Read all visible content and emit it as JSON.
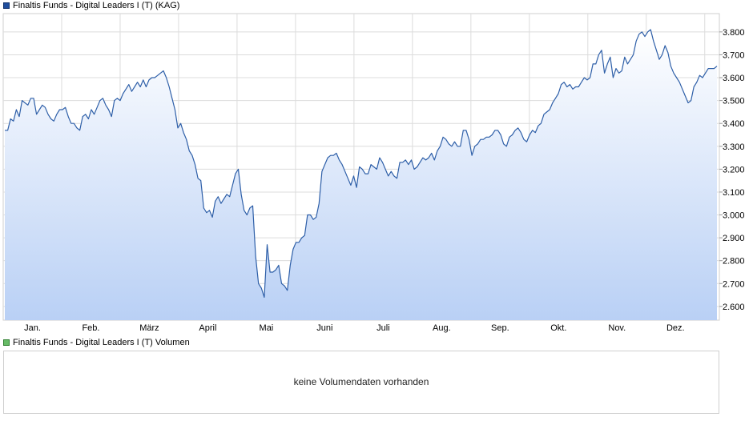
{
  "price_legend": {
    "label": "Finaltis Funds - Digital Leaders I (T) (KAG)",
    "color": "#1f4e9e"
  },
  "volume_legend": {
    "label": "Finaltis Funds - Digital Leaders I (T) Volumen",
    "color": "#66bb66"
  },
  "volume_panel": {
    "message": "keine Volumendaten vorhanden"
  },
  "chart_data": {
    "type": "area",
    "ylim": [
      2540,
      3880
    ],
    "yticks": [
      2600,
      2700,
      2800,
      2900,
      3000,
      3100,
      3200,
      3300,
      3400,
      3500,
      3600,
      3700,
      3800
    ],
    "ytick_labels": [
      "2.600",
      "2.700",
      "2.800",
      "2.900",
      "3.000",
      "3.100",
      "3.200",
      "3.300",
      "3.400",
      "3.500",
      "3.600",
      "3.700",
      "3.800"
    ],
    "x_range": [
      0,
      12.25
    ],
    "xticks": [
      0.5,
      1.5,
      2.5,
      3.5,
      4.5,
      5.5,
      6.5,
      7.5,
      8.5,
      9.5,
      10.5,
      11.5
    ],
    "xtick_labels": [
      "Jan.",
      "Feb.",
      "März",
      "April",
      "Mai",
      "Juni",
      "Juli",
      "Aug.",
      "Sep.",
      "Okt.",
      "Nov.",
      "Dez."
    ],
    "grid": true,
    "series": [
      {
        "color": "#2e5fa8",
        "values": [
          3370,
          3370,
          3420,
          3410,
          3460,
          3430,
          3500,
          3490,
          3480,
          3510,
          3510,
          3440,
          3460,
          3480,
          3470,
          3440,
          3420,
          3410,
          3440,
          3460,
          3460,
          3470,
          3430,
          3400,
          3400,
          3380,
          3370,
          3430,
          3440,
          3420,
          3460,
          3440,
          3470,
          3500,
          3510,
          3480,
          3460,
          3430,
          3500,
          3510,
          3500,
          3530,
          3550,
          3570,
          3540,
          3560,
          3580,
          3560,
          3590,
          3560,
          3590,
          3600,
          3600,
          3610,
          3620,
          3630,
          3600,
          3560,
          3510,
          3460,
          3380,
          3400,
          3360,
          3330,
          3280,
          3260,
          3220,
          3160,
          3150,
          3030,
          3010,
          3020,
          2990,
          3060,
          3080,
          3050,
          3070,
          3090,
          3080,
          3130,
          3180,
          3200,
          3090,
          3020,
          3000,
          3030,
          3040,
          2820,
          2700,
          2680,
          2640,
          2870,
          2750,
          2750,
          2760,
          2780,
          2700,
          2690,
          2670,
          2780,
          2850,
          2880,
          2880,
          2900,
          2910,
          3000,
          3000,
          2980,
          2990,
          3050,
          3190,
          3220,
          3250,
          3260,
          3260,
          3270,
          3240,
          3220,
          3190,
          3160,
          3130,
          3170,
          3120,
          3210,
          3200,
          3180,
          3180,
          3220,
          3210,
          3200,
          3250,
          3230,
          3200,
          3170,
          3190,
          3170,
          3160,
          3230,
          3230,
          3240,
          3220,
          3240,
          3200,
          3210,
          3230,
          3250,
          3240,
          3250,
          3270,
          3240,
          3280,
          3300,
          3340,
          3330,
          3310,
          3300,
          3320,
          3300,
          3300,
          3370,
          3370,
          3330,
          3260,
          3300,
          3310,
          3330,
          3330,
          3340,
          3340,
          3350,
          3370,
          3370,
          3350,
          3310,
          3300,
          3340,
          3350,
          3370,
          3380,
          3360,
          3330,
          3320,
          3350,
          3370,
          3360,
          3390,
          3400,
          3440,
          3450,
          3460,
          3490,
          3510,
          3530,
          3570,
          3580,
          3560,
          3570,
          3550,
          3560,
          3560,
          3580,
          3600,
          3590,
          3600,
          3660,
          3660,
          3700,
          3720,
          3620,
          3660,
          3690,
          3600,
          3640,
          3620,
          3630,
          3690,
          3660,
          3680,
          3700,
          3760,
          3790,
          3800,
          3780,
          3800,
          3810,
          3760,
          3720,
          3680,
          3700,
          3740,
          3710,
          3650,
          3620,
          3600,
          3580,
          3550,
          3520,
          3490,
          3500,
          3560,
          3580,
          3610,
          3600,
          3620,
          3640,
          3640,
          3640,
          3650
        ]
      }
    ]
  }
}
